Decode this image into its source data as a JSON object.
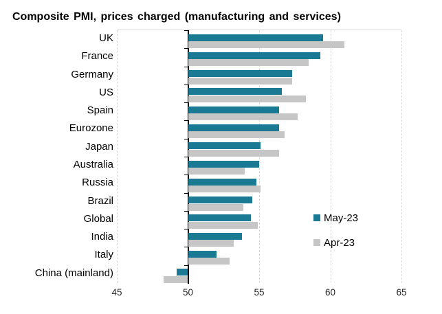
{
  "title": "Composite PMI, prices charged (manufacturing and services)",
  "chart_data": {
    "type": "bar",
    "orientation": "horizontal",
    "title": "Composite PMI, prices charged (manufacturing and services)",
    "categories": [
      "UK",
      "France",
      "Germany",
      "US",
      "Spain",
      "Eurozone",
      "Japan",
      "Australia",
      "Russia",
      "Brazil",
      "Global",
      "India",
      "Italy",
      "China (mainland)"
    ],
    "series": [
      {
        "name": "May-23",
        "color": "#1A7A94",
        "values": [
          59.5,
          59.3,
          57.3,
          56.6,
          56.4,
          56.4,
          55.1,
          55.0,
          54.8,
          54.5,
          54.4,
          53.8,
          52.0,
          49.2
        ]
      },
      {
        "name": "Apr-23",
        "color": "#C6C6C6",
        "values": [
          61.0,
          58.5,
          57.3,
          58.3,
          57.7,
          56.8,
          56.4,
          54.0,
          55.1,
          53.9,
          54.9,
          53.2,
          52.9,
          48.3
        ]
      }
    ],
    "xlim": [
      45,
      65
    ],
    "x_ticks": [
      "45",
      "50",
      "55",
      "60",
      "65"
    ],
    "bar_base": 50,
    "grid": "vertical-dashed",
    "gridline_color": "#D9D9D9",
    "axis_color": "#000000",
    "legend_position": "inside-right-middle",
    "xlabel": "",
    "ylabel": ""
  }
}
